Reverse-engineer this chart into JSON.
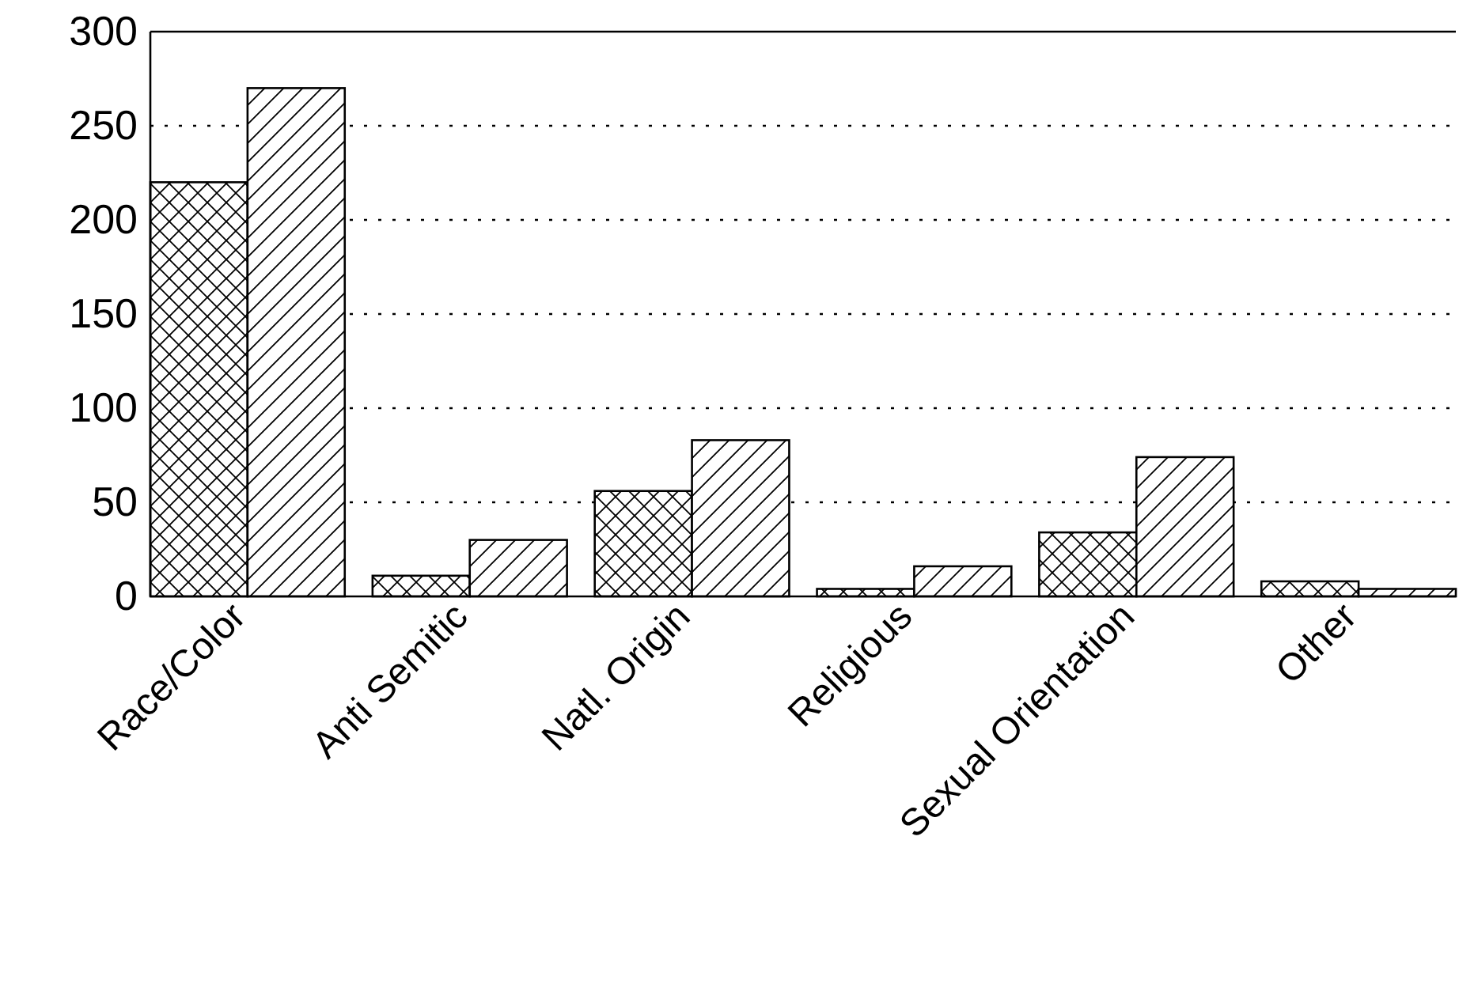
{
  "chart_data": {
    "type": "bar",
    "categories": [
      "Race/Color",
      "Anti Semitic",
      "Natl. Origin",
      "Religious",
      "Sexual Orientation",
      "Other"
    ],
    "series": [
      {
        "color": "#000000",
        "values": [
          220,
          11,
          56,
          4,
          34,
          8
        ]
      },
      {
        "color": "#000000",
        "values": [
          270,
          30,
          83,
          16,
          74,
          4
        ]
      }
    ],
    "ylim": [
      0,
      300
    ],
    "yticks": [
      0,
      50,
      100,
      150,
      200,
      250,
      300
    ],
    "grid": "y",
    "legend": false
  }
}
